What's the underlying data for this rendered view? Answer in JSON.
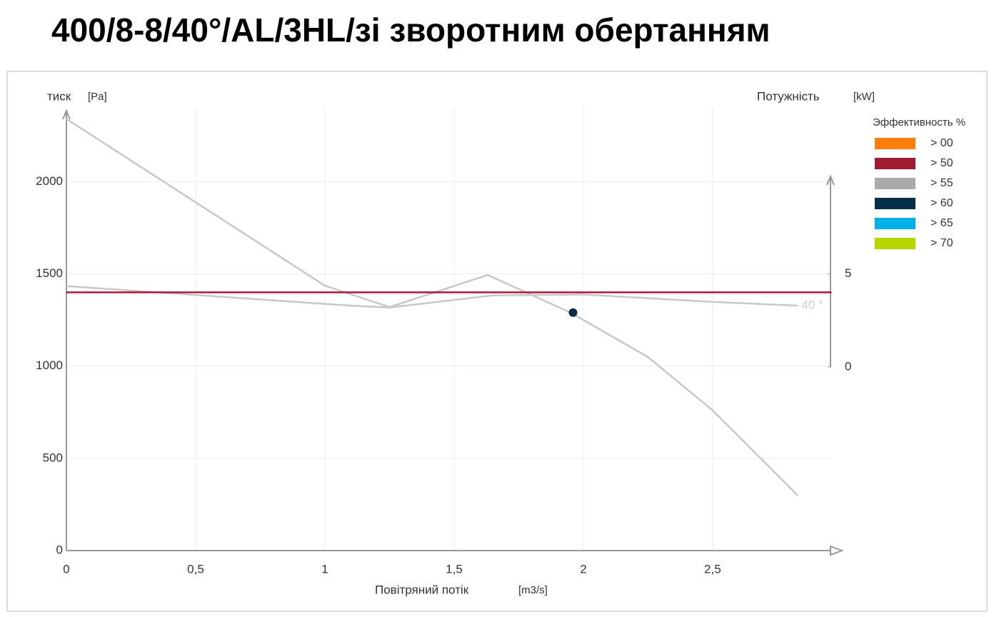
{
  "chart_data": {
    "type": "line",
    "title": "400/8-8/40°/AL/3HL/зі зворотним обертанням",
    "x_label": "Повітряний потік",
    "x_unit": "[m3/s]",
    "y_label": "тиск",
    "y_unit": "[Pa]",
    "y2_label": "Потужність",
    "y2_unit": "[kW]",
    "xlim": [
      0,
      3
    ],
    "xticks": [
      0,
      {
        "value": 0.5,
        "label": "0,5"
      },
      1,
      {
        "value": 1.5,
        "label": "1,5"
      },
      2,
      {
        "value": 2.5,
        "label": "2,5"
      }
    ],
    "ylim": [
      0,
      2400
    ],
    "yticks": [
      0,
      500,
      1000,
      1500,
      2000
    ],
    "y2lim": [
      0,
      10.4
    ],
    "y2ticks": [
      0,
      5
    ],
    "grid": true,
    "series": [
      {
        "color": "#c8c8c8",
        "x": [
          0,
          1,
          1.25,
          1.63,
          1.95,
          2.25,
          2.5,
          2.83
        ],
        "values": [
          2340,
          1436,
          1320,
          1494,
          1290,
          1049,
          760,
          298
        ]
      },
      {
        "color": "#c8c8c8",
        "axis": "y2",
        "x": [
          0,
          1.1,
          1.25,
          1.65,
          2,
          2.5,
          2.83
        ],
        "values": [
          4.35,
          3.3,
          3.2,
          3.85,
          3.9,
          3.5,
          3.3
        ]
      },
      {
        "color": "#b0153a",
        "x": [
          0,
          2.96
        ],
        "values": [
          1400,
          1400
        ]
      },
      {
        "color": "#0d2a4a",
        "marker": true,
        "x": [
          1.96
        ],
        "values": [
          1290
        ]
      }
    ],
    "curve_label": "40 °",
    "legend": {
      "title": "Эффективность %",
      "items": [
        {
          "label": "> 00",
          "color": "#ff7f0e"
        },
        {
          "label": "> 50",
          "color": "#9e1b32"
        },
        {
          "label": "> 55",
          "color": "#aaaaaa"
        },
        {
          "label": "> 60",
          "color": "#003049"
        },
        {
          "label": "> 65",
          "color": "#00b0e8"
        },
        {
          "label": "> 70",
          "color": "#b8d400"
        }
      ]
    }
  }
}
